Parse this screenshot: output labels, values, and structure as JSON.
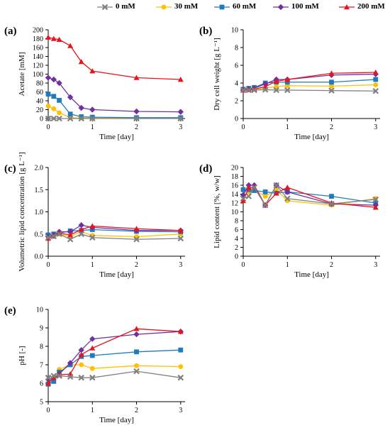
{
  "legend": {
    "items": [
      {
        "label": "0 mM",
        "color": "#808080",
        "marker": "x"
      },
      {
        "label": "30 mM",
        "color": "#FFC000",
        "marker": "circle"
      },
      {
        "label": "60 mM",
        "color": "#1F7BC0",
        "marker": "square"
      },
      {
        "label": "100 mM",
        "color": "#7030A0",
        "marker": "diamond"
      },
      {
        "label": "200 mM",
        "color": "#E8131D",
        "marker": "triangle"
      }
    ]
  },
  "chart_data": [
    {
      "panel": "(a)",
      "type": "line",
      "ylabel": "Acetate [mM]",
      "xlabel": "Time [day]",
      "ylim": [
        0,
        200
      ],
      "yticks": [
        "0",
        "20",
        "40",
        "60",
        "80",
        "100",
        "120",
        "140",
        "160",
        "180",
        "200"
      ],
      "xticks": [
        "0",
        "1",
        "2",
        "3"
      ],
      "x": [
        0,
        0.125,
        0.25,
        0.5,
        0.75,
        1,
        2,
        3
      ],
      "series": [
        {
          "name": "0 mM",
          "values": [
            0,
            0,
            0,
            0,
            0,
            0,
            0,
            0
          ]
        },
        {
          "name": "30 mM",
          "values": [
            28,
            22,
            13,
            2,
            1,
            1,
            1,
            1
          ]
        },
        {
          "name": "60 mM",
          "values": [
            55,
            50,
            41,
            10,
            4,
            3,
            2,
            2
          ]
        },
        {
          "name": "100 mM",
          "values": [
            92,
            88,
            80,
            48,
            24,
            20,
            16,
            15
          ]
        },
        {
          "name": "200 mM",
          "values": [
            183,
            180,
            178,
            164,
            128,
            107,
            92,
            88
          ]
        }
      ]
    },
    {
      "panel": "(b)",
      "type": "line",
      "ylabel": "Dry cell weight [g L⁻¹]",
      "xlabel": "Time [day]",
      "ylim": [
        0,
        10
      ],
      "yticks": [
        "0",
        "2",
        "4",
        "6",
        "8",
        "10"
      ],
      "xticks": [
        "0",
        "1",
        "2",
        "3"
      ],
      "x": [
        0,
        0.125,
        0.25,
        0.5,
        0.75,
        1,
        2,
        3
      ],
      "series": [
        {
          "name": "0 mM",
          "values": [
            3.2,
            3.2,
            3.2,
            3.25,
            3.2,
            3.2,
            3.15,
            3.1
          ]
        },
        {
          "name": "30 mM",
          "values": [
            3.2,
            3.25,
            3.3,
            3.4,
            3.6,
            3.7,
            3.65,
            3.8
          ]
        },
        {
          "name": "60 mM",
          "values": [
            3.3,
            3.4,
            3.5,
            4.0,
            4.1,
            4.1,
            4.1,
            4.4
          ]
        },
        {
          "name": "100 mM",
          "values": [
            3.2,
            3.3,
            3.4,
            3.9,
            4.4,
            4.4,
            4.9,
            5.0
          ]
        },
        {
          "name": "200 mM",
          "values": [
            3.2,
            3.25,
            3.3,
            3.6,
            4.2,
            4.4,
            5.1,
            5.2
          ]
        }
      ]
    },
    {
      "panel": "(c)",
      "type": "line",
      "ylabel": "Volumetric lipid concentration [g L⁻¹]",
      "xlabel": "Time [day]",
      "ylim": [
        0,
        2.0
      ],
      "yticks": [
        "0.0",
        "0.5",
        "1.0",
        "1.5",
        "2.0"
      ],
      "xticks": [
        "0",
        "1",
        "2",
        "3"
      ],
      "x": [
        0,
        0.125,
        0.25,
        0.5,
        0.75,
        1,
        2,
        3
      ],
      "series": [
        {
          "name": "0 mM",
          "values": [
            0.42,
            0.45,
            0.5,
            0.38,
            0.5,
            0.42,
            0.38,
            0.4
          ]
        },
        {
          "name": "30 mM",
          "values": [
            0.44,
            0.48,
            0.5,
            0.45,
            0.55,
            0.47,
            0.44,
            0.5
          ]
        },
        {
          "name": "60 mM",
          "values": [
            0.48,
            0.5,
            0.52,
            0.57,
            0.58,
            0.6,
            0.56,
            0.55
          ]
        },
        {
          "name": "100 mM",
          "values": [
            0.44,
            0.48,
            0.55,
            0.55,
            0.7,
            0.65,
            0.58,
            0.58
          ]
        },
        {
          "name": "200 mM",
          "values": [
            0.4,
            0.45,
            0.52,
            0.48,
            0.6,
            0.68,
            0.62,
            0.58
          ]
        }
      ]
    },
    {
      "panel": "(d)",
      "type": "line",
      "ylabel": "Lipid content [%, w/w]",
      "xlabel": "Time [day]",
      "ylim": [
        0,
        20
      ],
      "yticks": [
        "0",
        "2",
        "4",
        "6",
        "8",
        "10",
        "12",
        "14",
        "16",
        "18",
        "20"
      ],
      "xticks": [
        "0",
        "1",
        "2",
        "3"
      ],
      "x": [
        0,
        0.125,
        0.25,
        0.5,
        0.75,
        1,
        2,
        3
      ],
      "series": [
        {
          "name": "0 mM",
          "values": [
            13,
            13.5,
            15.5,
            11.5,
            16,
            13,
            11.8,
            12.8
          ]
        },
        {
          "name": "30 mM",
          "values": [
            13.5,
            14.5,
            15,
            13.5,
            15,
            12.5,
            11.5,
            13
          ]
        },
        {
          "name": "60 mM",
          "values": [
            15,
            15,
            14.8,
            14.5,
            14.2,
            14.5,
            13.5,
            12
          ]
        },
        {
          "name": "100 mM",
          "values": [
            13.8,
            16,
            16,
            11.5,
            16,
            14.5,
            11.8,
            11.5
          ]
        },
        {
          "name": "200 mM",
          "values": [
            12.5,
            15.5,
            15.5,
            11.5,
            14.2,
            15.5,
            12,
            11
          ]
        }
      ]
    },
    {
      "panel": "(e)",
      "type": "line",
      "ylabel": "pH [-]",
      "xlabel": "Time [day]",
      "ylim": [
        5,
        10
      ],
      "yticks": [
        "5",
        "6",
        "7",
        "8",
        "9",
        "10"
      ],
      "xticks": [
        "0",
        "1",
        "2",
        "3"
      ],
      "x": [
        0,
        0.125,
        0.25,
        0.5,
        0.75,
        1,
        2,
        3
      ],
      "series": [
        {
          "name": "0 mM",
          "values": [
            6.3,
            6.4,
            6.4,
            6.35,
            6.3,
            6.3,
            6.65,
            6.3
          ]
        },
        {
          "name": "30 mM",
          "values": [
            6.0,
            6.2,
            6.75,
            7.0,
            7.0,
            6.8,
            6.95,
            6.9
          ]
        },
        {
          "name": "60 mM",
          "values": [
            5.95,
            6.1,
            6.6,
            7.0,
            7.45,
            7.5,
            7.7,
            7.8
          ]
        },
        {
          "name": "100 mM",
          "values": [
            6.2,
            6.3,
            6.5,
            7.1,
            7.8,
            8.4,
            8.65,
            8.8
          ]
        },
        {
          "name": "200 mM",
          "values": [
            6.0,
            6.3,
            6.45,
            6.5,
            7.55,
            7.9,
            8.95,
            8.8
          ]
        }
      ]
    }
  ]
}
